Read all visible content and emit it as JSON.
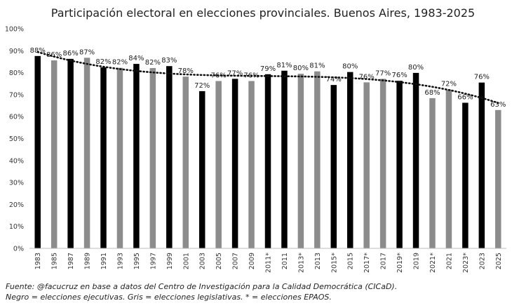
{
  "chart_data": {
    "type": "bar",
    "title": "Participación electoral en elecciones provinciales. Buenos Aires, 1983-2025",
    "xlabel": "",
    "ylabel": "",
    "ylim": [
      0,
      100
    ],
    "y_ticks": [
      "0%",
      "10%",
      "20%",
      "30%",
      "40%",
      "50%",
      "60%",
      "70%",
      "80%",
      "90%",
      "100%"
    ],
    "grid": false,
    "legend": "none",
    "trendline": "polynomial, dotted",
    "categories": [
      "1983",
      "1985",
      "1987",
      "1989",
      "1991",
      "1993",
      "1995",
      "1997",
      "1999",
      "2001",
      "2003",
      "2005",
      "2007",
      "2009",
      "2011*",
      "2011",
      "2013*",
      "2013",
      "2015*",
      "2015",
      "2017*",
      "2017",
      "2019*",
      "2019",
      "2021*",
      "2021",
      "2023*",
      "2023",
      "2025"
    ],
    "values": [
      88,
      86,
      86,
      87,
      82,
      82,
      84,
      82,
      83,
      78,
      72,
      76,
      77,
      76,
      79,
      81,
      80,
      81,
      74,
      80,
      76,
      77,
      76,
      80,
      68,
      72,
      66,
      76,
      63
    ],
    "bar_values_precise": [
      87.6,
      85.6,
      86.3,
      86.8,
      82.4,
      82.2,
      84.0,
      82.1,
      83.0,
      78.2,
      71.6,
      76.2,
      77.2,
      76.2,
      79.3,
      80.9,
      79.5,
      80.6,
      74.4,
      80.3,
      75.6,
      77.2,
      76.3,
      79.9,
      68.4,
      72.3,
      66.3,
      75.5,
      63.0
    ],
    "labels": [
      "88%",
      "86%",
      "86%",
      "87%",
      "82%",
      "82%",
      "84%",
      "82%",
      "83%",
      "78%",
      "72%",
      "76%",
      "77%",
      "76%",
      "79%",
      "81%",
      "80%",
      "81%",
      "74%",
      "80%",
      "76%",
      "77%",
      "76%",
      "80%",
      "68%",
      "72%",
      "66%",
      "76%",
      "63%"
    ],
    "election_type": [
      "ejecutiva",
      "legislativa",
      "ejecutiva",
      "legislativa",
      "ejecutiva",
      "legislativa",
      "ejecutiva",
      "legislativa",
      "ejecutiva",
      "legislativa",
      "ejecutiva",
      "legislativa",
      "ejecutiva",
      "legislativa",
      "ejecutiva",
      "ejecutiva",
      "legislativa",
      "legislativa",
      "ejecutiva",
      "ejecutiva",
      "legislativa",
      "legislativa",
      "ejecutiva",
      "ejecutiva",
      "legislativa",
      "legislativa",
      "ejecutiva",
      "ejecutiva",
      "legislativa"
    ],
    "colors": {
      "ejecutiva": "#000000",
      "legislativa": "#8c8c8c",
      "trendline": "#111111"
    }
  },
  "notes": {
    "source": "Fuente: @facucruz en base a datos del Centro de Investigación para la Calidad Democrática (CICaD).",
    "legend_text": "Negro = elecciones ejecutivas. Gris = elecciones legislativas. * = elecciones EPAOS."
  }
}
